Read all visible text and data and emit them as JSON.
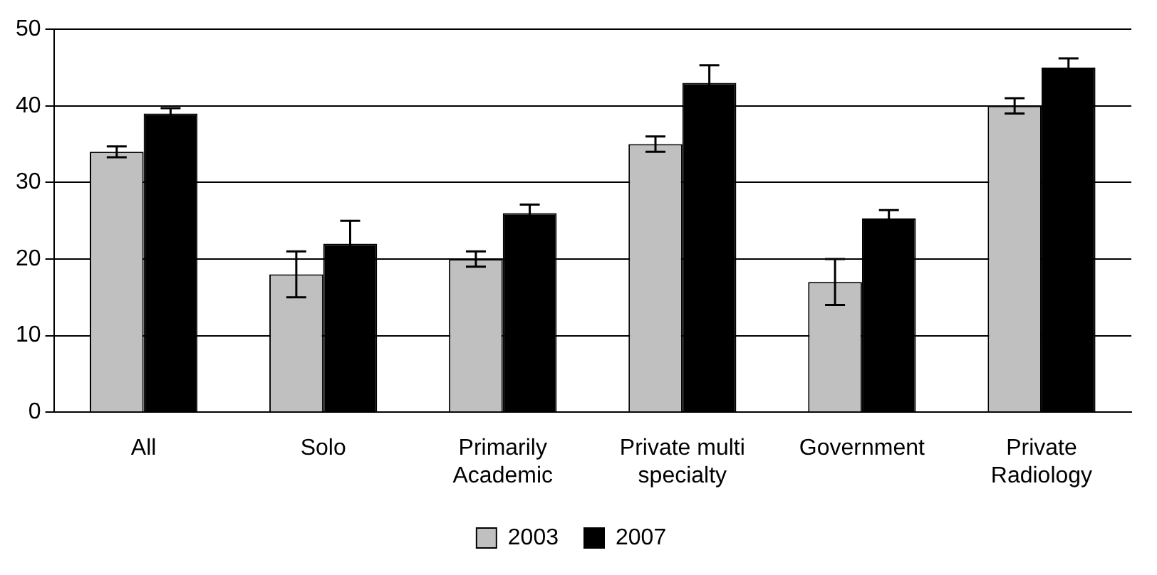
{
  "chart_data": {
    "type": "bar",
    "categories": [
      "All",
      "Solo",
      "Primarily Academic",
      "Private multi specialty",
      "Government",
      "Private Radiology"
    ],
    "series": [
      {
        "name": "2003",
        "color": "#c0c0c0",
        "values": [
          34,
          18,
          20,
          35,
          17,
          40
        ],
        "errors": [
          0.7,
          3,
          1,
          1,
          3,
          1
        ]
      },
      {
        "name": "2007",
        "color": "#000000",
        "values": [
          39,
          22,
          26,
          43,
          25.3,
          45
        ],
        "errors": [
          0.7,
          3,
          1.1,
          2.3,
          1.1,
          1.2
        ]
      }
    ],
    "ylim": [
      0,
      50
    ],
    "yticks": [
      0,
      10,
      20,
      30,
      40,
      50
    ],
    "grid": "y",
    "legend": "bottom"
  }
}
